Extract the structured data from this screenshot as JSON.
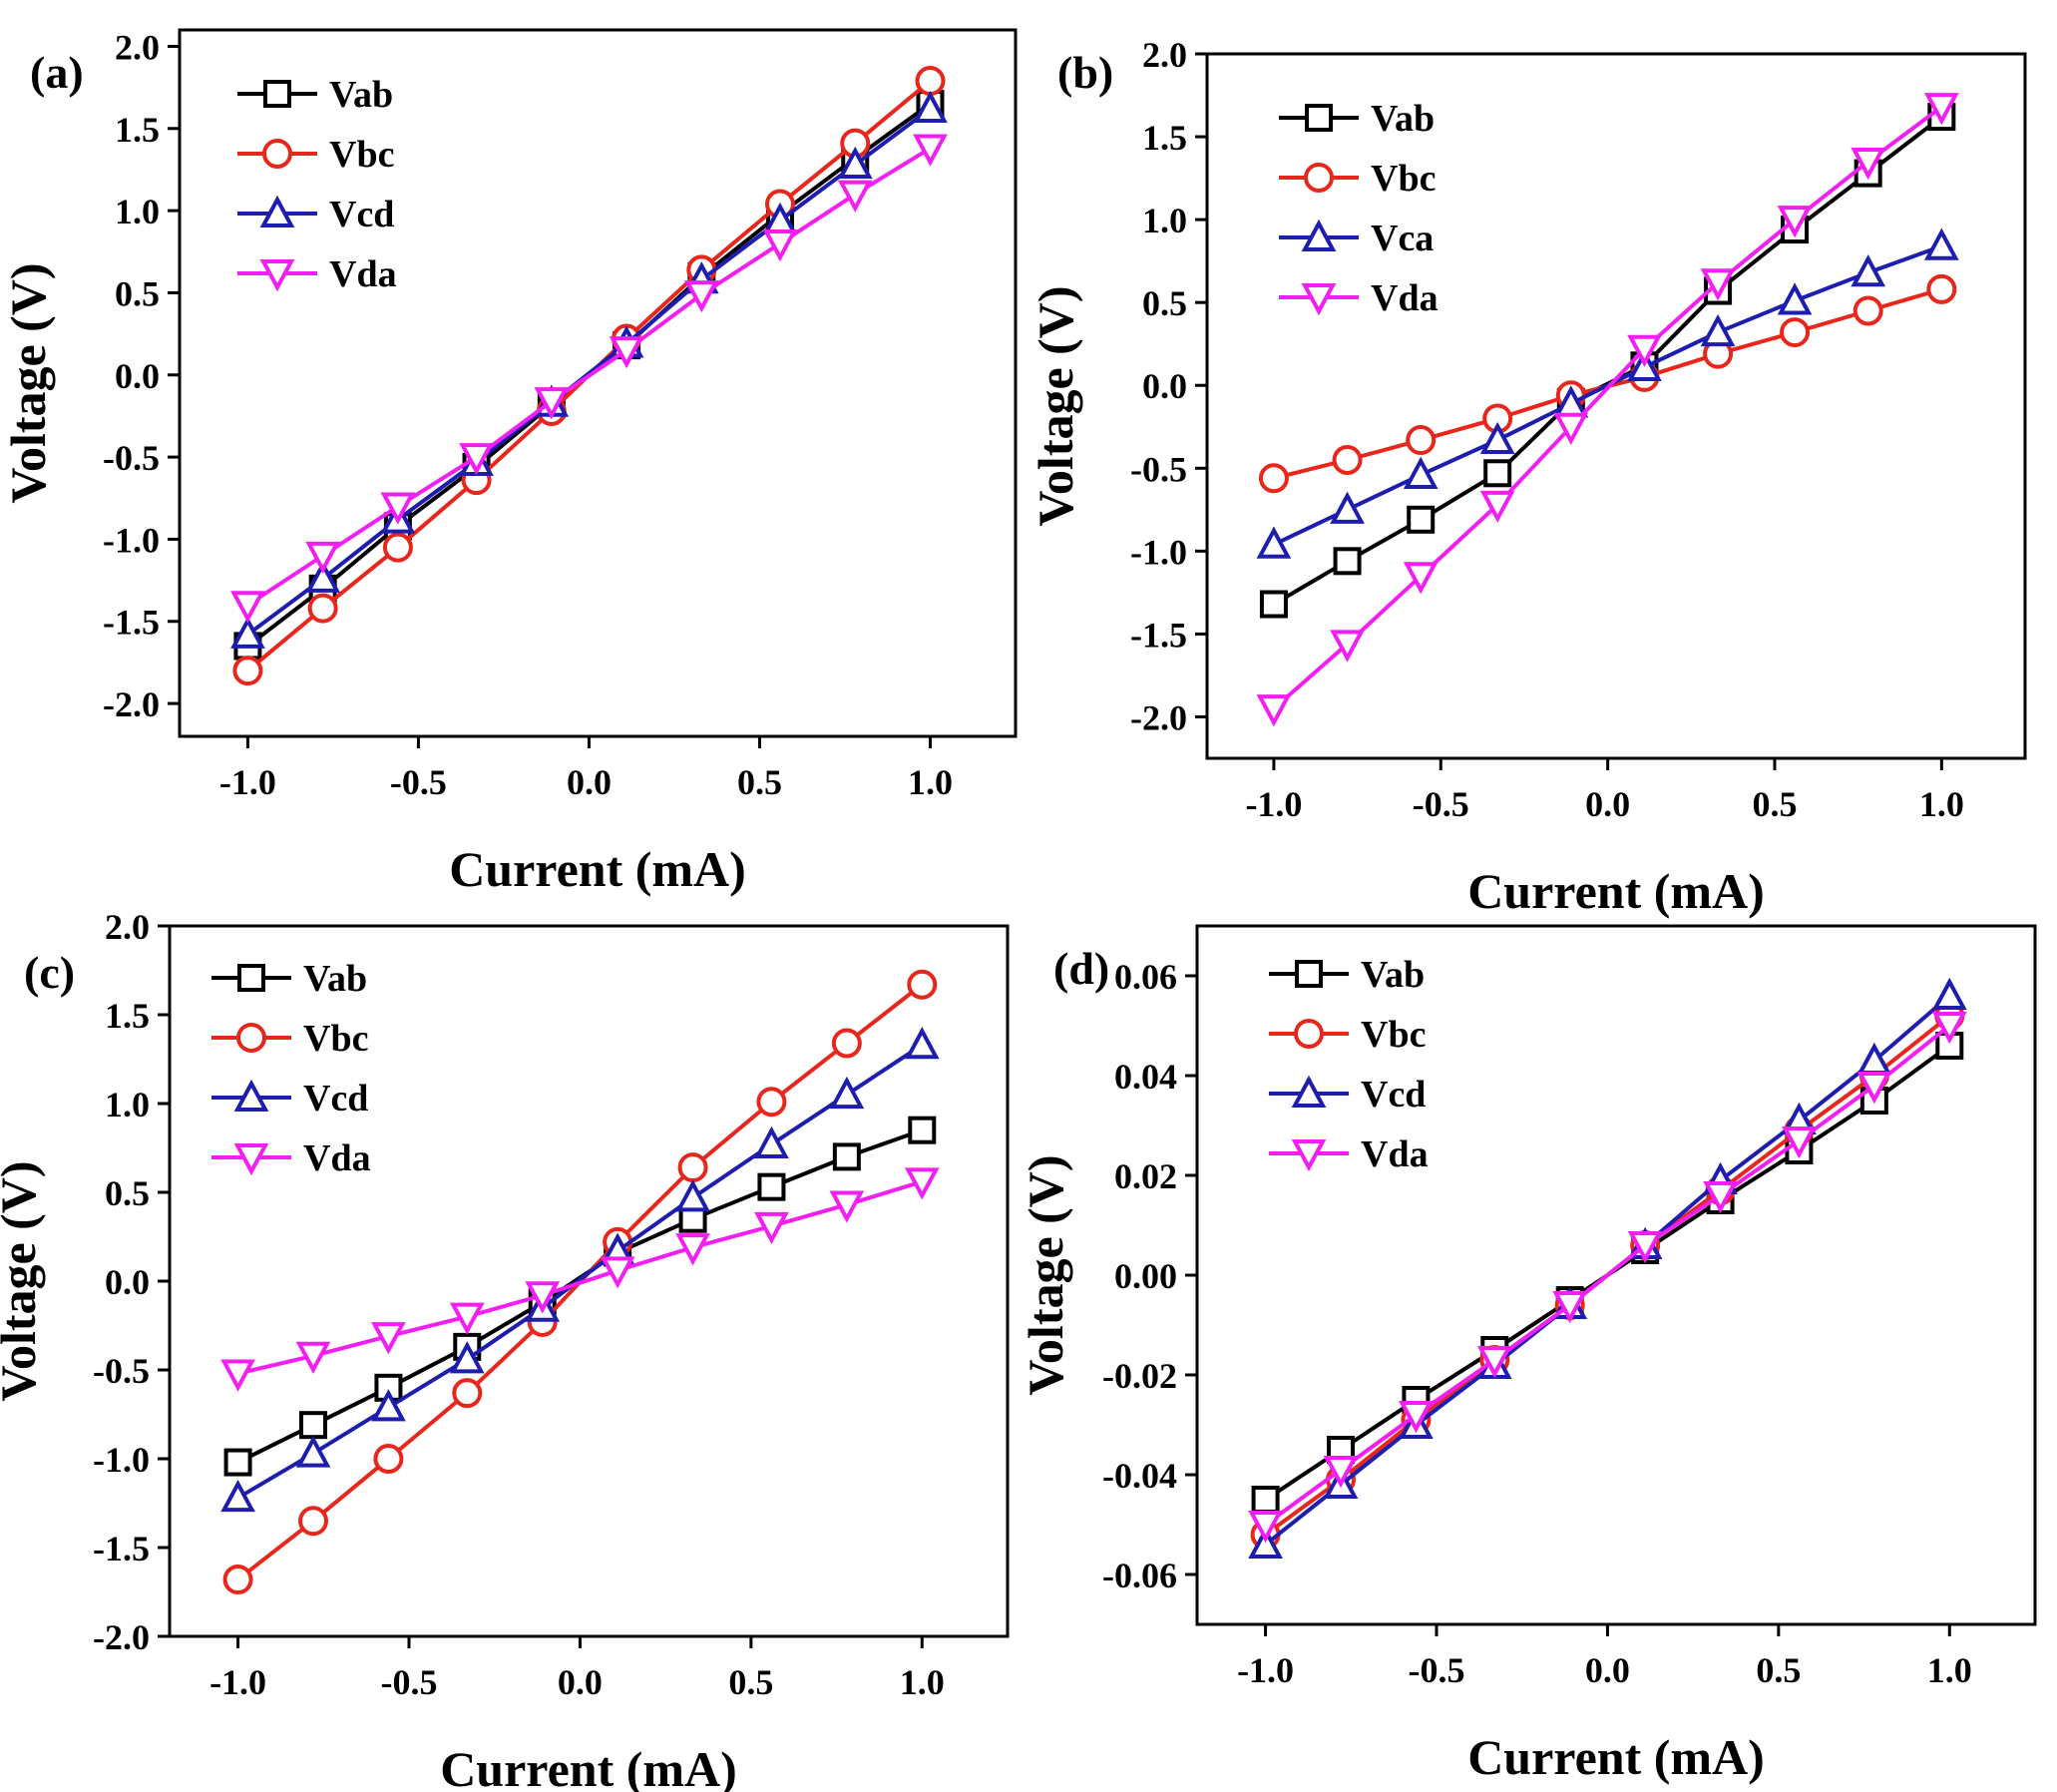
{
  "figure": {
    "series_colors": {
      "Vab": "#000000",
      "Vbc": "#e8261c",
      "Vcd": "#1d1daf",
      "Vca": "#1d1daf",
      "Vda": "#f21ef2"
    },
    "marker_shapes": {
      "Vab": "square",
      "Vbc": "circle",
      "Vcd": "triangle-up",
      "Vca": "triangle-up",
      "Vda": "triangle-down"
    }
  },
  "chart_data": [
    {
      "panel_label": "(a)",
      "type": "line",
      "xlabel": "Current (mA)",
      "ylabel": "Voltage (V)",
      "xlim": [
        -1.2,
        1.25
      ],
      "ylim": [
        -2.2,
        2.1
      ],
      "xticks": [
        -1.0,
        -0.5,
        0.0,
        0.5,
        1.0
      ],
      "xtick_labels": [
        "-1.0",
        "-0.5",
        "0.0",
        "0.5",
        "1.0"
      ],
      "yticks": [
        -2.0,
        -1.5,
        -1.0,
        -0.5,
        0.0,
        0.5,
        1.0,
        1.5,
        2.0
      ],
      "ytick_labels": [
        "-2.0",
        "-1.5",
        "-1.0",
        "-0.5",
        "0.0",
        "0.5",
        "1.0",
        "1.5",
        "2.0"
      ],
      "legend": "top-left",
      "x": [
        -1.0,
        -0.78,
        -0.56,
        -0.33,
        -0.11,
        0.11,
        0.33,
        0.56,
        0.78,
        1.0
      ],
      "series": [
        {
          "name": "Vab",
          "values": [
            -1.65,
            -1.3,
            -0.92,
            -0.56,
            -0.18,
            0.18,
            0.6,
            0.98,
            1.32,
            1.65
          ]
        },
        {
          "name": "Vbc",
          "values": [
            -1.8,
            -1.42,
            -1.05,
            -0.64,
            -0.22,
            0.22,
            0.64,
            1.04,
            1.41,
            1.79
          ]
        },
        {
          "name": "Vcd",
          "values": [
            -1.58,
            -1.24,
            -0.88,
            -0.53,
            -0.17,
            0.19,
            0.58,
            0.94,
            1.28,
            1.62
          ]
        },
        {
          "name": "Vda",
          "values": [
            -1.4,
            -1.1,
            -0.8,
            -0.5,
            -0.16,
            0.15,
            0.49,
            0.8,
            1.1,
            1.38
          ]
        }
      ]
    },
    {
      "panel_label": "(b)",
      "type": "line",
      "xlabel": "Current (mA)",
      "ylabel": "Voltage (V)",
      "xlim": [
        -1.2,
        1.25
      ],
      "ylim": [
        -2.25,
        2.0
      ],
      "xticks": [
        -1.0,
        -0.5,
        0.0,
        0.5,
        1.0
      ],
      "xtick_labels": [
        "-1.0",
        "-0.5",
        "0.0",
        "0.5",
        "1.0"
      ],
      "yticks": [
        -2.0,
        -1.5,
        -1.0,
        -0.5,
        0.0,
        0.5,
        1.0,
        1.5,
        2.0
      ],
      "ytick_labels": [
        "-2.0",
        "-1.5",
        "-1.0",
        "-0.5",
        "0.0",
        "0.5",
        "1.0",
        "1.5",
        "2.0"
      ],
      "legend": "top-left",
      "x": [
        -1.0,
        -0.78,
        -0.56,
        -0.33,
        -0.11,
        0.11,
        0.33,
        0.56,
        0.78,
        1.0
      ],
      "series": [
        {
          "name": "Vab",
          "values": [
            -1.32,
            -1.06,
            -0.81,
            -0.53,
            -0.1,
            0.12,
            0.57,
            0.94,
            1.28,
            1.62
          ]
        },
        {
          "name": "Vbc",
          "values": [
            -0.56,
            -0.45,
            -0.33,
            -0.2,
            -0.06,
            0.05,
            0.19,
            0.32,
            0.45,
            0.58
          ]
        },
        {
          "name": "Vca",
          "values": [
            -0.96,
            -0.75,
            -0.54,
            -0.33,
            -0.11,
            0.11,
            0.32,
            0.51,
            0.68,
            0.84
          ]
        },
        {
          "name": "Vda",
          "values": [
            -1.95,
            -1.56,
            -1.15,
            -0.72,
            -0.25,
            0.22,
            0.62,
            1.0,
            1.35,
            1.68
          ]
        }
      ]
    },
    {
      "panel_label": "(c)",
      "type": "line",
      "xlabel": "Current (mA)",
      "ylabel": "Voltage (V)",
      "xlim": [
        -1.2,
        1.25
      ],
      "ylim": [
        -2.0,
        2.0
      ],
      "xticks": [
        -1.0,
        -0.5,
        0.0,
        0.5,
        1.0
      ],
      "xtick_labels": [
        "-1.0",
        "-0.5",
        "0.0",
        "0.5",
        "1.0"
      ],
      "yticks": [
        -2.0,
        -1.5,
        -1.0,
        -0.5,
        0.0,
        0.5,
        1.0,
        1.5,
        2.0
      ],
      "ytick_labels": [
        "-2.0",
        "-1.5",
        "-1.0",
        "-0.5",
        "0.0",
        "0.5",
        "1.0",
        "1.5",
        "2.0"
      ],
      "legend": "top-left",
      "x": [
        -1.0,
        -0.78,
        -0.56,
        -0.33,
        -0.11,
        0.11,
        0.33,
        0.56,
        0.78,
        1.0
      ],
      "series": [
        {
          "name": "Vab",
          "values": [
            -1.02,
            -0.81,
            -0.6,
            -0.37,
            -0.12,
            0.16,
            0.35,
            0.53,
            0.7,
            0.85
          ]
        },
        {
          "name": "Vbc",
          "values": [
            -1.68,
            -1.35,
            -1.0,
            -0.63,
            -0.23,
            0.22,
            0.64,
            1.01,
            1.34,
            1.67
          ]
        },
        {
          "name": "Vcd",
          "values": [
            -1.22,
            -0.97,
            -0.71,
            -0.44,
            -0.15,
            0.17,
            0.47,
            0.77,
            1.05,
            1.33
          ]
        },
        {
          "name": "Vda",
          "values": [
            -0.52,
            -0.42,
            -0.31,
            -0.2,
            -0.08,
            0.06,
            0.19,
            0.31,
            0.43,
            0.56
          ]
        }
      ]
    },
    {
      "panel_label": "(d)",
      "type": "line",
      "xlabel": "Current (mA)",
      "ylabel": "Voltage (V)",
      "xlim": [
        -1.2,
        1.25
      ],
      "ylim": [
        -0.07,
        0.07
      ],
      "xticks": [
        -1.0,
        -0.5,
        0.0,
        0.5,
        1.0
      ],
      "xtick_labels": [
        "-1.0",
        "-0.5",
        "0.0",
        "0.5",
        "1.0"
      ],
      "yticks": [
        -0.06,
        -0.04,
        -0.02,
        0.0,
        0.02,
        0.04,
        0.06
      ],
      "ytick_labels": [
        "-0.06",
        "-0.04",
        "-0.02",
        "0.00",
        "0.02",
        "0.04",
        "0.06"
      ],
      "legend": "top-left",
      "x": [
        -1.0,
        -0.78,
        -0.56,
        -0.33,
        -0.11,
        0.11,
        0.33,
        0.56,
        0.78,
        1.0
      ],
      "series": [
        {
          "name": "Vab",
          "values": [
            -0.045,
            -0.035,
            -0.025,
            -0.015,
            -0.005,
            0.005,
            0.015,
            0.025,
            0.035,
            0.046
          ]
        },
        {
          "name": "Vbc",
          "values": [
            -0.052,
            -0.041,
            -0.029,
            -0.017,
            -0.006,
            0.006,
            0.017,
            0.029,
            0.04,
            0.052
          ]
        },
        {
          "name": "Vcd",
          "values": [
            -0.054,
            -0.042,
            -0.03,
            -0.018,
            -0.006,
            0.006,
            0.019,
            0.031,
            0.043,
            0.056
          ]
        },
        {
          "name": "Vda",
          "values": [
            -0.05,
            -0.039,
            -0.028,
            -0.017,
            -0.006,
            0.006,
            0.016,
            0.027,
            0.038,
            0.05
          ]
        }
      ]
    }
  ]
}
